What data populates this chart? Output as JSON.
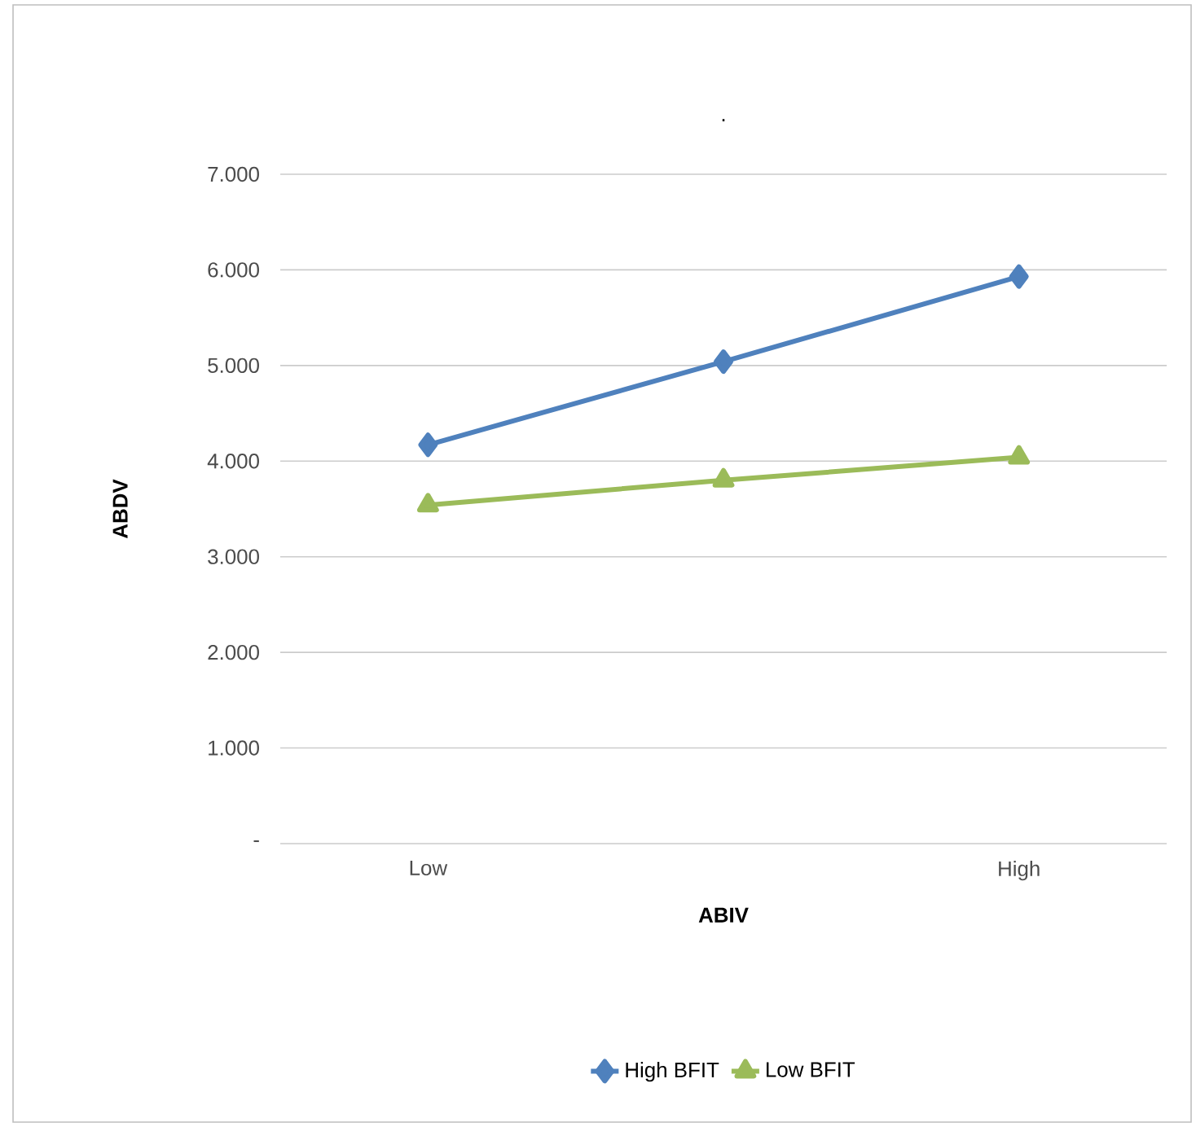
{
  "chart_data": {
    "type": "line",
    "title": ".",
    "xlabel": "ABIV",
    "ylabel": "ABDV",
    "categories": [
      "Low",
      null,
      "High"
    ],
    "series": [
      {
        "name": "High BFIT",
        "color": "#4f81bd",
        "marker": "diamond",
        "values": [
          4.17,
          5.04,
          5.93
        ]
      },
      {
        "name": "Low BFIT",
        "color": "#9bbb59",
        "marker": "triangle",
        "values": [
          3.54,
          3.8,
          4.04
        ]
      }
    ],
    "ylim": [
      0,
      7
    ],
    "yticks": [
      {
        "value": 0,
        "label": "-"
      },
      {
        "value": 1,
        "label": "1.000"
      },
      {
        "value": 2,
        "label": "2.000"
      },
      {
        "value": 3,
        "label": "3.000"
      },
      {
        "value": 4,
        "label": "4.000"
      },
      {
        "value": 5,
        "label": "5.000"
      },
      {
        "value": 6,
        "label": "6.000"
      },
      {
        "value": 7,
        "label": "7.000"
      }
    ],
    "grid": "y",
    "legend": "bottom"
  }
}
